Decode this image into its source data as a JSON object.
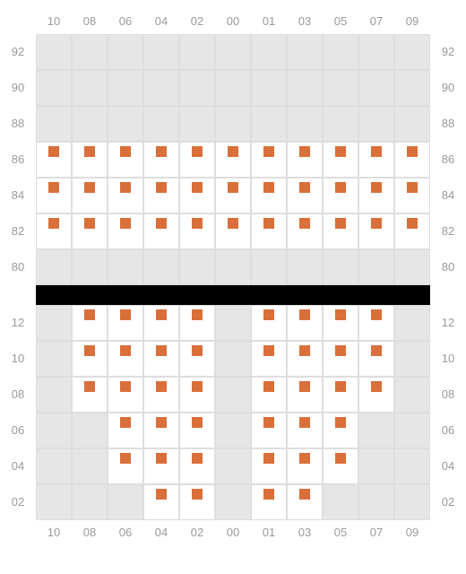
{
  "colors": {
    "marker": "#d96f3a",
    "empty_bg": "#e6e6e6",
    "seat_bg": "#ffffff",
    "border": "#dedede",
    "label": "#9a9a9a",
    "divider": "#000000"
  },
  "cell_size": 40,
  "marker_size": 12,
  "sections": [
    {
      "id": "upper",
      "column_labels_top": [
        "10",
        "08",
        "06",
        "04",
        "02",
        "00",
        "01",
        "03",
        "05",
        "07",
        "09"
      ],
      "row_labels": [
        "92",
        "90",
        "88",
        "86",
        "84",
        "82",
        "80"
      ],
      "show_row_labels_left": true,
      "show_row_labels_right": true,
      "show_col_labels_bottom": false,
      "cols": 11,
      "rows": 7,
      "grid": [
        [
          0,
          0,
          0,
          0,
          0,
          0,
          0,
          0,
          0,
          0,
          0
        ],
        [
          0,
          0,
          0,
          0,
          0,
          0,
          0,
          0,
          0,
          0,
          0
        ],
        [
          0,
          0,
          0,
          0,
          0,
          0,
          0,
          0,
          0,
          0,
          0
        ],
        [
          1,
          1,
          1,
          1,
          1,
          1,
          1,
          1,
          1,
          1,
          1
        ],
        [
          1,
          1,
          1,
          1,
          1,
          1,
          1,
          1,
          1,
          1,
          1
        ],
        [
          1,
          1,
          1,
          1,
          1,
          1,
          1,
          1,
          1,
          1,
          1
        ],
        [
          0,
          0,
          0,
          0,
          0,
          0,
          0,
          0,
          0,
          0,
          0
        ]
      ]
    },
    {
      "id": "lower",
      "column_labels_top": [],
      "column_labels_bottom": [
        "10",
        "08",
        "06",
        "04",
        "02",
        "00",
        "01",
        "03",
        "05",
        "07",
        "09"
      ],
      "row_labels": [
        "12",
        "10",
        "08",
        "06",
        "04",
        "02"
      ],
      "show_row_labels_left": true,
      "show_row_labels_right": true,
      "show_col_labels_bottom": true,
      "cols": 11,
      "rows": 6,
      "grid": [
        [
          0,
          1,
          1,
          1,
          1,
          0,
          1,
          1,
          1,
          1,
          0
        ],
        [
          0,
          1,
          1,
          1,
          1,
          0,
          1,
          1,
          1,
          1,
          0
        ],
        [
          0,
          1,
          1,
          1,
          1,
          0,
          1,
          1,
          1,
          1,
          0
        ],
        [
          0,
          0,
          1,
          1,
          1,
          0,
          1,
          1,
          1,
          0,
          0
        ],
        [
          0,
          0,
          1,
          1,
          1,
          0,
          1,
          1,
          1,
          0,
          0
        ],
        [
          0,
          0,
          0,
          1,
          1,
          0,
          1,
          1,
          0,
          0,
          0
        ]
      ]
    }
  ]
}
